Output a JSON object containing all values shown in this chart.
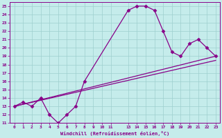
{
  "xlabel": "Windchill (Refroidissement éolien,°C)",
  "xlim": [
    -0.5,
    23.5
  ],
  "ylim": [
    11,
    25.5
  ],
  "xtick_vals": [
    0,
    1,
    2,
    3,
    4,
    5,
    6,
    7,
    8,
    9,
    10,
    11,
    13,
    14,
    15,
    16,
    17,
    18,
    19,
    20,
    21,
    22,
    23
  ],
  "ytick_vals": [
    11,
    12,
    13,
    14,
    15,
    16,
    17,
    18,
    19,
    20,
    21,
    22,
    23,
    24,
    25
  ],
  "background_color": "#c5eceb",
  "grid_color": "#9dcfce",
  "line_color": "#880088",
  "line1_x": [
    0,
    1,
    2,
    3,
    4,
    5,
    6,
    7,
    8,
    13,
    14,
    15,
    16,
    17,
    18,
    19,
    20,
    21,
    22,
    23
  ],
  "line1_y": [
    13,
    13.5,
    13,
    14,
    12,
    11,
    12,
    13,
    16,
    24.5,
    25,
    25,
    24.5,
    22,
    19.5,
    19,
    20.5,
    21,
    20,
    19
  ],
  "line2_x": [
    0,
    23
  ],
  "line2_y": [
    13,
    19
  ],
  "line3_x": [
    0,
    23
  ],
  "line3_y": [
    13,
    18.5
  ],
  "marker": "D",
  "markersize": 2.5,
  "linewidth": 0.9
}
